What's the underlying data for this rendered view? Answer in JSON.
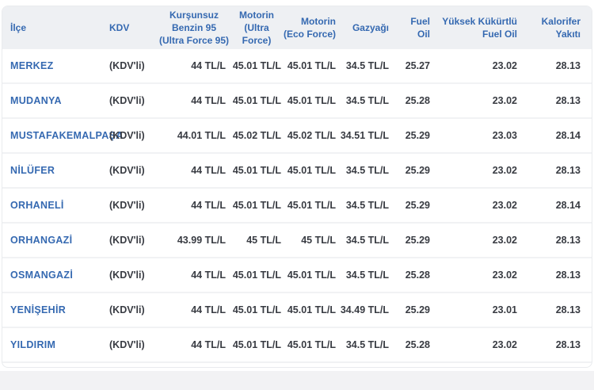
{
  "colors": {
    "accent_blue": "#3569b1",
    "header_background": "#eef0f3",
    "value_text": "#383b42",
    "row_separator": "#f1f2f4",
    "page_background_bottom": "#f2f2f4"
  },
  "table": {
    "columns": [
      {
        "key": "district",
        "label": "İlçe",
        "lines": [
          "İlçe"
        ]
      },
      {
        "key": "kdv",
        "label": "KDV",
        "lines": [
          "KDV"
        ]
      },
      {
        "key": "benzin95",
        "label": "Kurşunsuz Benzin 95 (Ultra Force 95)",
        "lines": [
          "Kurşunsuz",
          "Benzin 95",
          "(Ultra Force 95)"
        ]
      },
      {
        "key": "motorin_ultra",
        "label": "Motorin (Ultra Force)",
        "lines": [
          "Motorin",
          "(Ultra",
          "Force)"
        ]
      },
      {
        "key": "motorin_eco",
        "label": "Motorin (Eco Force)",
        "lines": [
          "Motorin",
          "(Eco Force)"
        ]
      },
      {
        "key": "gazyagi",
        "label": "Gazyağı",
        "lines": [
          "Gazyağı"
        ]
      },
      {
        "key": "fuel_oil",
        "label": "Fuel Oil",
        "lines": [
          "Fuel",
          "Oil"
        ]
      },
      {
        "key": "yuksek_fuel",
        "label": "Yüksek Kükürtlü Fuel Oil",
        "lines": [
          "Yüksek Kükürtlü",
          "Fuel Oil"
        ]
      },
      {
        "key": "kalorifer",
        "label": "Kalorifer Yakıtı",
        "lines": [
          "Kalorifer",
          "Yakıtı"
        ]
      }
    ],
    "rows": [
      {
        "district": "MERKEZ",
        "kdv": "(KDV'li)",
        "benzin95": "44 TL/L",
        "motorin_ultra": "45.01 TL/L",
        "motorin_eco": "45.01 TL/L",
        "gazyagi": "34.5 TL/L",
        "fuel_oil": "25.27",
        "yuksek_fuel": "23.02",
        "kalorifer": "28.13"
      },
      {
        "district": "MUDANYA",
        "kdv": "(KDV'li)",
        "benzin95": "44 TL/L",
        "motorin_ultra": "45.01 TL/L",
        "motorin_eco": "45.01 TL/L",
        "gazyagi": "34.5 TL/L",
        "fuel_oil": "25.28",
        "yuksek_fuel": "23.02",
        "kalorifer": "28.13"
      },
      {
        "district": "MUSTAFAKEMALPAŞA",
        "kdv": "(KDV'li)",
        "benzin95": "44.01 TL/L",
        "motorin_ultra": "45.02 TL/L",
        "motorin_eco": "45.02 TL/L",
        "gazyagi": "34.51 TL/L",
        "fuel_oil": "25.29",
        "yuksek_fuel": "23.03",
        "kalorifer": "28.14"
      },
      {
        "district": "NİLÜFER",
        "kdv": "(KDV'li)",
        "benzin95": "44 TL/L",
        "motorin_ultra": "45.01 TL/L",
        "motorin_eco": "45.01 TL/L",
        "gazyagi": "34.5 TL/L",
        "fuel_oil": "25.29",
        "yuksek_fuel": "23.02",
        "kalorifer": "28.13"
      },
      {
        "district": "ORHANELİ",
        "kdv": "(KDV'li)",
        "benzin95": "44 TL/L",
        "motorin_ultra": "45.01 TL/L",
        "motorin_eco": "45.01 TL/L",
        "gazyagi": "34.5 TL/L",
        "fuel_oil": "25.29",
        "yuksek_fuel": "23.02",
        "kalorifer": "28.14"
      },
      {
        "district": "ORHANGAZİ",
        "kdv": "(KDV'li)",
        "benzin95": "43.99 TL/L",
        "motorin_ultra": "45 TL/L",
        "motorin_eco": "45 TL/L",
        "gazyagi": "34.5 TL/L",
        "fuel_oil": "25.29",
        "yuksek_fuel": "23.02",
        "kalorifer": "28.13"
      },
      {
        "district": "OSMANGAZİ",
        "kdv": "(KDV'li)",
        "benzin95": "44 TL/L",
        "motorin_ultra": "45.01 TL/L",
        "motorin_eco": "45.01 TL/L",
        "gazyagi": "34.5 TL/L",
        "fuel_oil": "25.28",
        "yuksek_fuel": "23.02",
        "kalorifer": "28.13"
      },
      {
        "district": "YENİŞEHİR",
        "kdv": "(KDV'li)",
        "benzin95": "44 TL/L",
        "motorin_ultra": "45.01 TL/L",
        "motorin_eco": "45.01 TL/L",
        "gazyagi": "34.49 TL/L",
        "fuel_oil": "25.29",
        "yuksek_fuel": "23.01",
        "kalorifer": "28.13"
      },
      {
        "district": "YILDIRIM",
        "kdv": "(KDV'li)",
        "benzin95": "44 TL/L",
        "motorin_ultra": "45.01 TL/L",
        "motorin_eco": "45.01 TL/L",
        "gazyagi": "34.5 TL/L",
        "fuel_oil": "25.28",
        "yuksek_fuel": "23.02",
        "kalorifer": "28.13"
      }
    ]
  }
}
